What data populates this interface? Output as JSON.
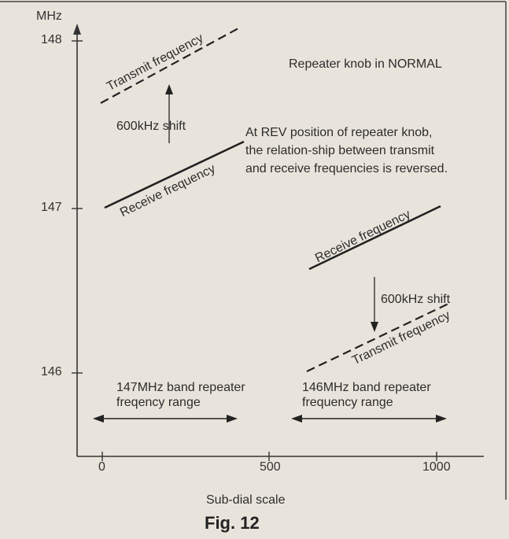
{
  "figure": {
    "y_unit": "MHz",
    "y_ticks": [
      {
        "label": "148",
        "value": 148
      },
      {
        "label": "147",
        "value": 147
      },
      {
        "label": "146",
        "value": 146
      }
    ],
    "x_ticks": [
      {
        "label": "0",
        "value": 0
      },
      {
        "label": "500",
        "value": 500
      },
      {
        "label": "1000",
        "value": 1000
      }
    ],
    "x_axis_label": "Sub-dial scale",
    "caption": "Fig. 12",
    "notes": {
      "normal": "Repeater knob in NORMAL",
      "rev_line1": "At REV position of repeater knob,",
      "rev_line2": "the relation-ship between transmit",
      "rev_line3": "and receive frequencies is reversed."
    },
    "left_group": {
      "transmit_label": "Transmit frequency",
      "shift_label": "600kHz shift",
      "receive_label": "Receive frequency",
      "range_line1": "147MHz band repeater",
      "range_line2": "freqency range"
    },
    "right_group": {
      "receive_label": "Receive frequency",
      "shift_label": "600kHz shift",
      "transmit_label": "Transmit frequency",
      "range_line1": "146MHz band repeater",
      "range_line2": "frequency range"
    }
  }
}
